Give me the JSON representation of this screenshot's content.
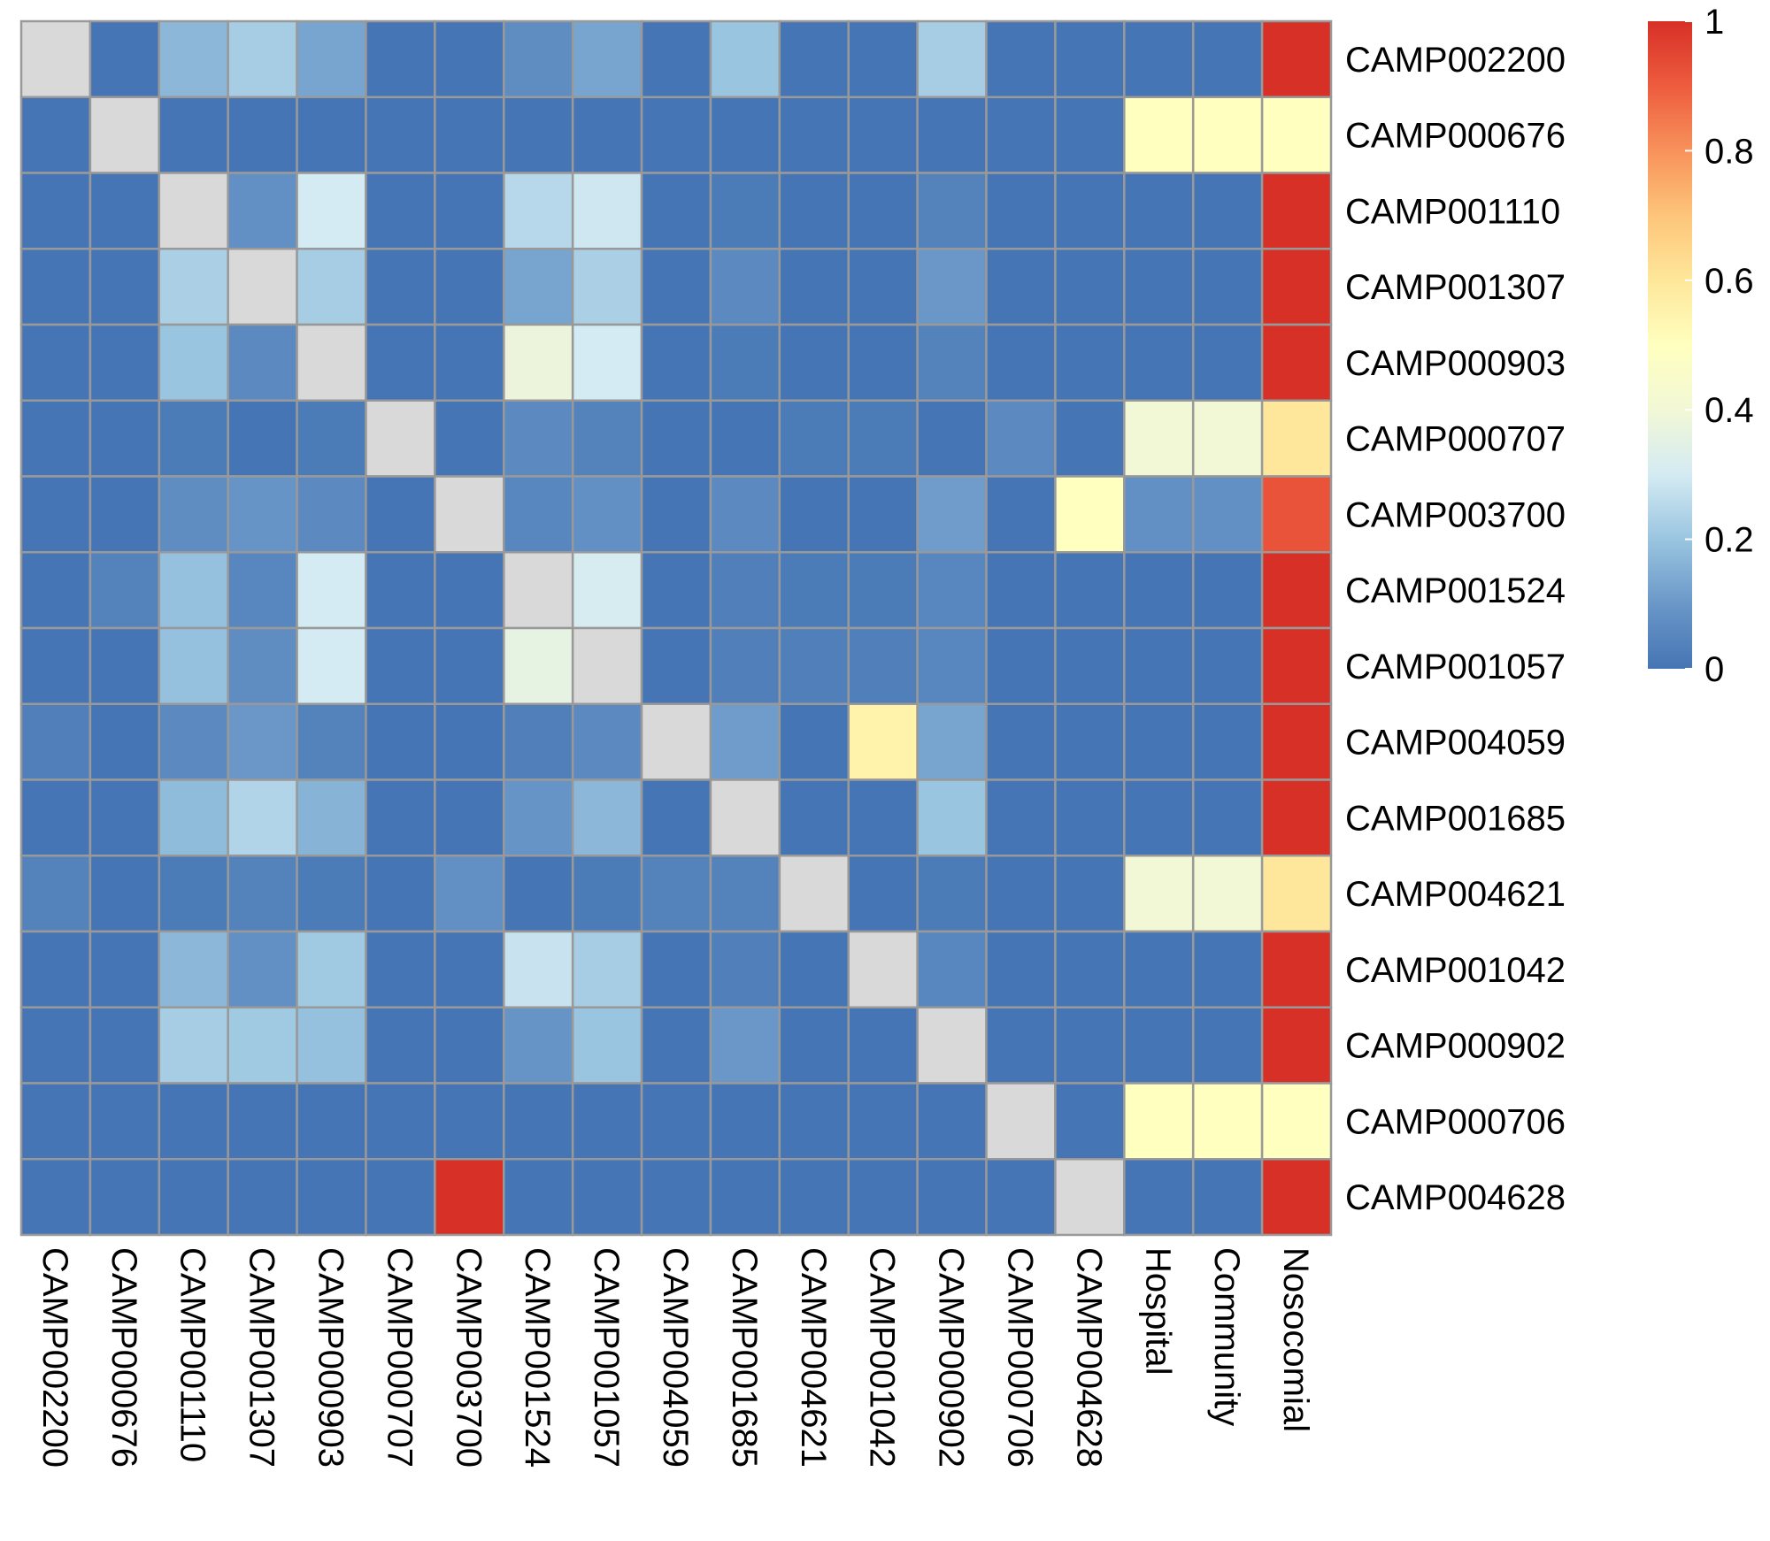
{
  "chart_data": {
    "type": "heatmap",
    "title": "",
    "xlabel": "",
    "ylabel": "",
    "row_labels": [
      "CAMP002200",
      "CAMP000676",
      "CAMP001110",
      "CAMP001307",
      "CAMP000903",
      "CAMP000707",
      "CAMP003700",
      "CAMP001524",
      "CAMP001057",
      "CAMP004059",
      "CAMP001685",
      "CAMP004621",
      "CAMP001042",
      "CAMP000902",
      "CAMP000706",
      "CAMP004628"
    ],
    "column_labels": [
      "CAMP002200",
      "CAMP000676",
      "CAMP001110",
      "CAMP001307",
      "CAMP000903",
      "CAMP000707",
      "CAMP003700",
      "CAMP001524",
      "CAMP001057",
      "CAMP004059",
      "CAMP001685",
      "CAMP004621",
      "CAMP001042",
      "CAMP000902",
      "CAMP000706",
      "CAMP004628",
      "Hospital",
      "Community",
      "Nosocomial"
    ],
    "diagonal_color": "#d9d9d9",
    "diagonal_note": "self-comparison cells shown in grey",
    "values": [
      [
        null,
        0,
        0.17,
        0.22,
        0.13,
        0,
        0,
        0.07,
        0.13,
        0,
        0.2,
        0,
        0,
        0.22,
        0,
        0,
        0,
        0,
        1.0
      ],
      [
        0,
        null,
        0,
        0,
        0,
        0,
        0,
        0,
        0,
        0,
        0,
        0,
        0,
        0,
        0,
        0,
        0.5,
        0.5,
        0.5
      ],
      [
        0,
        0,
        null,
        0.08,
        0.3,
        0,
        0,
        0.25,
        0.29,
        0,
        0.02,
        0,
        0,
        0.04,
        0,
        0,
        0,
        0,
        1.0
      ],
      [
        0,
        0,
        0.23,
        null,
        0.22,
        0,
        0,
        0.13,
        0.23,
        0,
        0.06,
        0,
        0,
        0.1,
        0,
        0,
        0,
        0,
        1.0
      ],
      [
        0,
        0,
        0.2,
        0.06,
        null,
        0,
        0,
        0.38,
        0.3,
        0,
        0.02,
        0,
        0,
        0.04,
        0,
        0,
        0,
        0,
        1.0
      ],
      [
        0,
        0,
        0.02,
        0,
        0.02,
        null,
        0,
        0.06,
        0.04,
        0,
        0,
        0.02,
        0.02,
        0,
        0.06,
        0,
        0.4,
        0.4,
        0.6
      ],
      [
        0,
        0,
        0.07,
        0.09,
        0.06,
        0,
        null,
        0.05,
        0.08,
        0,
        0.06,
        0,
        0,
        0.11,
        0,
        0.5,
        0.08,
        0.08,
        0.92
      ],
      [
        0,
        0.04,
        0.19,
        0.05,
        0.3,
        0,
        0,
        null,
        0.31,
        0,
        0.03,
        0.02,
        0.02,
        0.05,
        0,
        0,
        0,
        0,
        1.0
      ],
      [
        0,
        0,
        0.19,
        0.07,
        0.3,
        0,
        0,
        0.36,
        null,
        0,
        0.03,
        0.03,
        0.03,
        0.05,
        0,
        0,
        0,
        0,
        1.0
      ],
      [
        0.03,
        0,
        0.06,
        0.1,
        0.04,
        0,
        0,
        0.03,
        0.06,
        null,
        0.11,
        0,
        0.55,
        0.13,
        0,
        0,
        0,
        0,
        1.0
      ],
      [
        0,
        0,
        0.18,
        0.24,
        0.16,
        0,
        0,
        0.09,
        0.17,
        0,
        null,
        0,
        0,
        0.2,
        0,
        0,
        0,
        0,
        1.0
      ],
      [
        0.04,
        0,
        0.02,
        0.04,
        0.02,
        0,
        0.08,
        0,
        0.02,
        0.04,
        0.04,
        null,
        0,
        0.02,
        0,
        0,
        0.4,
        0.4,
        0.6
      ],
      [
        0,
        0,
        0.17,
        0.08,
        0.21,
        0,
        0,
        0.28,
        0.22,
        0,
        0.03,
        0,
        null,
        0.05,
        0,
        0,
        0,
        0,
        1.0
      ],
      [
        0,
        0,
        0.22,
        0.21,
        0.19,
        0,
        0,
        0.09,
        0.2,
        0,
        0.1,
        0,
        0,
        null,
        0,
        0,
        0,
        0,
        1.0
      ],
      [
        0,
        0,
        0,
        0,
        0,
        0,
        0,
        0,
        0,
        0,
        0,
        0,
        0,
        0,
        null,
        0,
        0.5,
        0.5,
        0.5
      ],
      [
        0,
        0,
        0,
        0,
        0,
        0,
        1.0,
        0,
        0,
        0,
        0,
        0,
        0,
        0,
        0,
        null,
        0,
        0,
        1.0
      ]
    ],
    "colorbar": {
      "min": 0,
      "max": 1,
      "ticks": [
        0,
        0.2,
        0.4,
        0.6,
        0.8,
        1
      ],
      "tick_labels": [
        "0",
        "0.2",
        "0.4",
        "0.6",
        "0.8",
        "1"
      ],
      "stops": [
        {
          "value": 0,
          "color": "#4575b4"
        },
        {
          "value": 0.1,
          "color": "#6a97c8"
        },
        {
          "value": 0.2,
          "color": "#9ac5e0"
        },
        {
          "value": 0.3,
          "color": "#d4ebf3"
        },
        {
          "value": 0.4,
          "color": "#f2f8d6"
        },
        {
          "value": 0.5,
          "color": "#ffffbf"
        },
        {
          "value": 0.6,
          "color": "#fee79a"
        },
        {
          "value": 0.7,
          "color": "#fdc57a"
        },
        {
          "value": 0.8,
          "color": "#f8925b"
        },
        {
          "value": 0.9,
          "color": "#ed5c3e"
        },
        {
          "value": 1,
          "color": "#d73027"
        }
      ]
    },
    "grid": true,
    "grid_color": "#999999",
    "legend": "right"
  }
}
